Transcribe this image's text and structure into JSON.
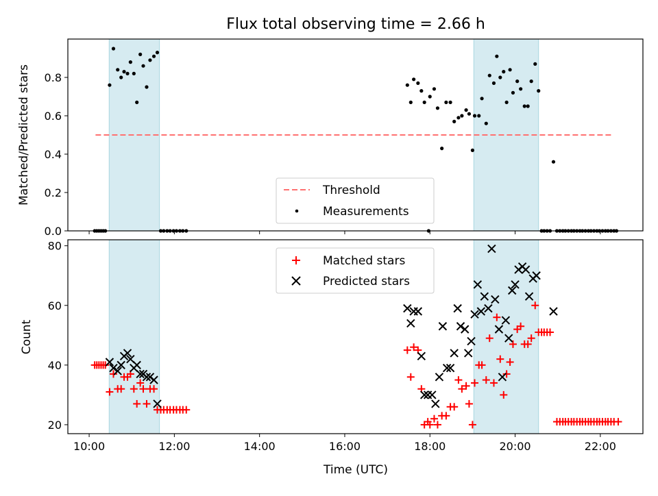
{
  "title": "Flux total observing time = 2.66 h",
  "colors": {
    "shade": "#d6ebf1",
    "shade_edge": "#a8d6df",
    "threshold": "#ff7070",
    "matched": "#ff0000",
    "predicted": "#000000",
    "measure": "#000000"
  },
  "chart_data": [
    {
      "type": "scatter",
      "ylabel": "Matched/Predicted stars",
      "xlabel": "",
      "xlim": [
        9.5,
        23.0
      ],
      "ylim": [
        0.0,
        1.0
      ],
      "yticks": [
        0.0,
        0.2,
        0.4,
        0.6,
        0.8
      ],
      "ytick_labels": [
        "0.0",
        "0.2",
        "0.4",
        "0.6",
        "0.8"
      ],
      "xticks": [
        10,
        12,
        14,
        16,
        18,
        20,
        22
      ],
      "xtick_labels": [
        "",
        "",
        "",
        "",
        "",
        "",
        ""
      ],
      "shaded_intervals": [
        [
          10.47,
          11.65
        ],
        [
          19.03,
          20.55
        ]
      ],
      "threshold": {
        "y": 0.5,
        "x": [
          10.15,
          22.3
        ]
      },
      "legend": {
        "position": "bottom-center",
        "entries": [
          "Threshold",
          "Measurements"
        ]
      },
      "series": [
        {
          "name": "Measurements",
          "points": [
            [
              10.13,
              0
            ],
            [
              10.18,
              0
            ],
            [
              10.23,
              0
            ],
            [
              10.28,
              0
            ],
            [
              10.33,
              0
            ],
            [
              10.38,
              0
            ],
            [
              10.48,
              0.76
            ],
            [
              10.57,
              0.95
            ],
            [
              10.67,
              0.84
            ],
            [
              10.75,
              0.8
            ],
            [
              10.82,
              0.83
            ],
            [
              10.9,
              0.82
            ],
            [
              10.97,
              0.88
            ],
            [
              11.05,
              0.82
            ],
            [
              11.12,
              0.67
            ],
            [
              11.2,
              0.92
            ],
            [
              11.27,
              0.86
            ],
            [
              11.35,
              0.75
            ],
            [
              11.43,
              0.89
            ],
            [
              11.52,
              0.91
            ],
            [
              11.6,
              0.93
            ],
            [
              11.68,
              0
            ],
            [
              11.75,
              0
            ],
            [
              11.83,
              0
            ],
            [
              11.9,
              0
            ],
            [
              11.98,
              0
            ],
            [
              12.05,
              0
            ],
            [
              12.13,
              0
            ],
            [
              12.2,
              0
            ],
            [
              12.28,
              0
            ],
            [
              17.47,
              0.76
            ],
            [
              17.55,
              0.67
            ],
            [
              17.62,
              0.79
            ],
            [
              17.72,
              0.77
            ],
            [
              17.8,
              0.73
            ],
            [
              17.87,
              0.67
            ],
            [
              18.0,
              0.7
            ],
            [
              18.1,
              0.74
            ],
            [
              18.18,
              0.64
            ],
            [
              18.28,
              0.43
            ],
            [
              18.38,
              0.67
            ],
            [
              18.48,
              0.67
            ],
            [
              18.57,
              0.57
            ],
            [
              18.67,
              0.59
            ],
            [
              18.75,
              0.6
            ],
            [
              18.85,
              0.63
            ],
            [
              18.92,
              0.61
            ],
            [
              19.0,
              0.42
            ],
            [
              19.05,
              0.6
            ],
            [
              19.15,
              0.6
            ],
            [
              19.22,
              0.69
            ],
            [
              19.32,
              0.56
            ],
            [
              19.4,
              0.81
            ],
            [
              19.5,
              0.77
            ],
            [
              19.57,
              0.91
            ],
            [
              19.65,
              0.8
            ],
            [
              19.73,
              0.83
            ],
            [
              19.8,
              0.67
            ],
            [
              19.88,
              0.84
            ],
            [
              19.95,
              0.72
            ],
            [
              20.05,
              0.78
            ],
            [
              20.13,
              0.74
            ],
            [
              20.22,
              0.65
            ],
            [
              20.3,
              0.65
            ],
            [
              20.38,
              0.78
            ],
            [
              20.47,
              0.87
            ],
            [
              20.55,
              0.73
            ],
            [
              20.62,
              0
            ],
            [
              20.68,
              0
            ],
            [
              20.75,
              0
            ],
            [
              20.82,
              0
            ],
            [
              20.9,
              0.36
            ],
            [
              20.98,
              0
            ],
            [
              21.05,
              0
            ],
            [
              21.12,
              0
            ],
            [
              21.18,
              0
            ],
            [
              21.25,
              0
            ],
            [
              21.32,
              0
            ],
            [
              21.38,
              0
            ],
            [
              21.45,
              0
            ],
            [
              21.52,
              0
            ],
            [
              21.58,
              0
            ],
            [
              21.65,
              0
            ],
            [
              21.72,
              0
            ],
            [
              21.78,
              0
            ],
            [
              21.85,
              0
            ],
            [
              21.92,
              0
            ],
            [
              21.98,
              0
            ],
            [
              22.05,
              0
            ],
            [
              22.12,
              0
            ],
            [
              22.18,
              0
            ],
            [
              22.25,
              0
            ],
            [
              22.32,
              0
            ],
            [
              22.38,
              0
            ],
            [
              17.97,
              0
            ]
          ]
        }
      ]
    },
    {
      "type": "scatter",
      "ylabel": "Count",
      "xlabel": "Time (UTC)",
      "xlim": [
        9.5,
        23.0
      ],
      "ylim": [
        17,
        82
      ],
      "yticks": [
        20,
        40,
        60,
        80
      ],
      "ytick_labels": [
        "20",
        "40",
        "60",
        "80"
      ],
      "xticks": [
        10,
        12,
        14,
        16,
        18,
        20,
        22
      ],
      "xtick_labels": [
        "10:00",
        "12:00",
        "14:00",
        "16:00",
        "18:00",
        "20:00",
        "22:00"
      ],
      "shaded_intervals": [
        [
          10.47,
          11.65
        ],
        [
          19.03,
          20.55
        ]
      ],
      "legend": {
        "position": "top-center",
        "entries": [
          "Matched stars",
          "Predicted stars"
        ]
      },
      "series": [
        {
          "name": "Matched stars",
          "points": [
            [
              10.13,
              40
            ],
            [
              10.18,
              40
            ],
            [
              10.23,
              40
            ],
            [
              10.28,
              40
            ],
            [
              10.33,
              40
            ],
            [
              10.38,
              40
            ],
            [
              10.48,
              31
            ],
            [
              10.57,
              37
            ],
            [
              10.67,
              32
            ],
            [
              10.75,
              32
            ],
            [
              10.82,
              36
            ],
            [
              10.9,
              36
            ],
            [
              10.97,
              37
            ],
            [
              11.05,
              32
            ],
            [
              11.12,
              27
            ],
            [
              11.2,
              34
            ],
            [
              11.27,
              32
            ],
            [
              11.35,
              27
            ],
            [
              11.43,
              32
            ],
            [
              11.52,
              32
            ],
            [
              11.6,
              25
            ],
            [
              11.68,
              25
            ],
            [
              11.75,
              25
            ],
            [
              11.83,
              25
            ],
            [
              11.9,
              25
            ],
            [
              11.98,
              25
            ],
            [
              12.05,
              25
            ],
            [
              12.13,
              25
            ],
            [
              12.2,
              25
            ],
            [
              12.28,
              25
            ],
            [
              17.47,
              45
            ],
            [
              17.55,
              36
            ],
            [
              17.62,
              46
            ],
            [
              17.72,
              45
            ],
            [
              17.8,
              32
            ],
            [
              17.87,
              20
            ],
            [
              17.95,
              21
            ],
            [
              18.0,
              20
            ],
            [
              18.1,
              22
            ],
            [
              18.18,
              20
            ],
            [
              18.28,
              23
            ],
            [
              18.38,
              23
            ],
            [
              18.48,
              26
            ],
            [
              18.57,
              26
            ],
            [
              18.67,
              35
            ],
            [
              18.75,
              32
            ],
            [
              18.85,
              33
            ],
            [
              18.92,
              27
            ],
            [
              19.0,
              20
            ],
            [
              19.05,
              34
            ],
            [
              19.15,
              40
            ],
            [
              19.22,
              40
            ],
            [
              19.32,
              35
            ],
            [
              19.4,
              49
            ],
            [
              19.5,
              34
            ],
            [
              19.57,
              56
            ],
            [
              19.65,
              42
            ],
            [
              19.73,
              30
            ],
            [
              19.8,
              37
            ],
            [
              19.88,
              41
            ],
            [
              19.95,
              47
            ],
            [
              20.05,
              52
            ],
            [
              20.13,
              53
            ],
            [
              20.22,
              47
            ],
            [
              20.3,
              47
            ],
            [
              20.38,
              49
            ],
            [
              20.47,
              60
            ],
            [
              20.55,
              51
            ],
            [
              20.62,
              51
            ],
            [
              20.68,
              51
            ],
            [
              20.75,
              51
            ],
            [
              20.82,
              51
            ],
            [
              20.98,
              21
            ],
            [
              21.05,
              21
            ],
            [
              21.12,
              21
            ],
            [
              21.18,
              21
            ],
            [
              21.25,
              21
            ],
            [
              21.32,
              21
            ],
            [
              21.38,
              21
            ],
            [
              21.45,
              21
            ],
            [
              21.52,
              21
            ],
            [
              21.58,
              21
            ],
            [
              21.65,
              21
            ],
            [
              21.72,
              21
            ],
            [
              21.78,
              21
            ],
            [
              21.85,
              21
            ],
            [
              21.92,
              21
            ],
            [
              21.98,
              21
            ],
            [
              22.05,
              21
            ],
            [
              22.12,
              21
            ],
            [
              22.18,
              21
            ],
            [
              22.25,
              21
            ],
            [
              22.32,
              21
            ],
            [
              22.42,
              21
            ]
          ]
        },
        {
          "name": "Predicted stars",
          "points": [
            [
              10.48,
              41
            ],
            [
              10.57,
              39
            ],
            [
              10.67,
              38
            ],
            [
              10.75,
              40
            ],
            [
              10.82,
              43
            ],
            [
              10.9,
              44
            ],
            [
              10.97,
              42
            ],
            [
              11.05,
              39
            ],
            [
              11.12,
              40
            ],
            [
              11.2,
              37
            ],
            [
              11.27,
              37
            ],
            [
              11.35,
              36
            ],
            [
              11.43,
              36
            ],
            [
              11.52,
              35
            ],
            [
              11.6,
              27
            ],
            [
              17.47,
              59
            ],
            [
              17.55,
              54
            ],
            [
              17.62,
              58
            ],
            [
              17.72,
              58
            ],
            [
              17.8,
              43
            ],
            [
              17.87,
              30
            ],
            [
              17.95,
              30
            ],
            [
              18.05,
              30
            ],
            [
              18.13,
              27
            ],
            [
              18.22,
              36
            ],
            [
              18.3,
              53
            ],
            [
              18.4,
              39
            ],
            [
              18.48,
              39
            ],
            [
              18.57,
              44
            ],
            [
              18.65,
              59
            ],
            [
              18.72,
              53
            ],
            [
              18.82,
              52
            ],
            [
              18.9,
              44
            ],
            [
              18.97,
              48
            ],
            [
              19.05,
              57
            ],
            [
              19.12,
              67
            ],
            [
              19.2,
              58
            ],
            [
              19.28,
              63
            ],
            [
              19.37,
              59
            ],
            [
              19.45,
              79
            ],
            [
              19.53,
              62
            ],
            [
              19.62,
              52
            ],
            [
              19.7,
              36
            ],
            [
              19.78,
              55
            ],
            [
              19.85,
              49
            ],
            [
              19.93,
              65
            ],
            [
              20.0,
              67
            ],
            [
              20.08,
              72
            ],
            [
              20.17,
              73
            ],
            [
              20.25,
              72
            ],
            [
              20.33,
              63
            ],
            [
              20.42,
              69
            ],
            [
              20.5,
              70
            ],
            [
              20.9,
              58
            ]
          ]
        }
      ]
    }
  ]
}
